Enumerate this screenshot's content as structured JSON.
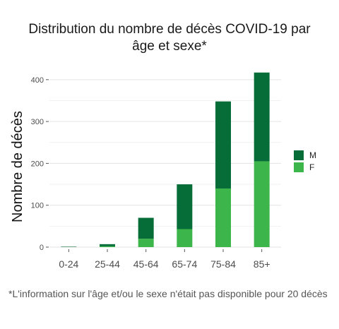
{
  "title_lines": [
    "Distribution du nombre de décès COVID-19 par",
    "âge et sexe*"
  ],
  "footnote": "*L'information sur l'âge et/ou le sexe n'était pas disponible pour 20 décès",
  "chart_data": {
    "type": "bar",
    "stacked": true,
    "title": "Distribution du nombre de décès COVID-19 par âge et sexe*",
    "xlabel": "",
    "ylabel": "Nombre de décès",
    "categories": [
      "0-24",
      "25-44",
      "45-64",
      "65-74",
      "75-84",
      "85+"
    ],
    "series": [
      {
        "name": "F",
        "color": "#3cb54a",
        "values": [
          0,
          2,
          20,
          43,
          140,
          205
        ]
      },
      {
        "name": "M",
        "color": "#076d38",
        "values": [
          1,
          5,
          50,
          107,
          208,
          212
        ]
      }
    ],
    "ylim": [
      0,
      425
    ],
    "yticks": [
      0,
      100,
      200,
      300,
      400
    ],
    "grid": true,
    "legend": {
      "position": "right",
      "entries": [
        "M",
        "F"
      ]
    }
  }
}
